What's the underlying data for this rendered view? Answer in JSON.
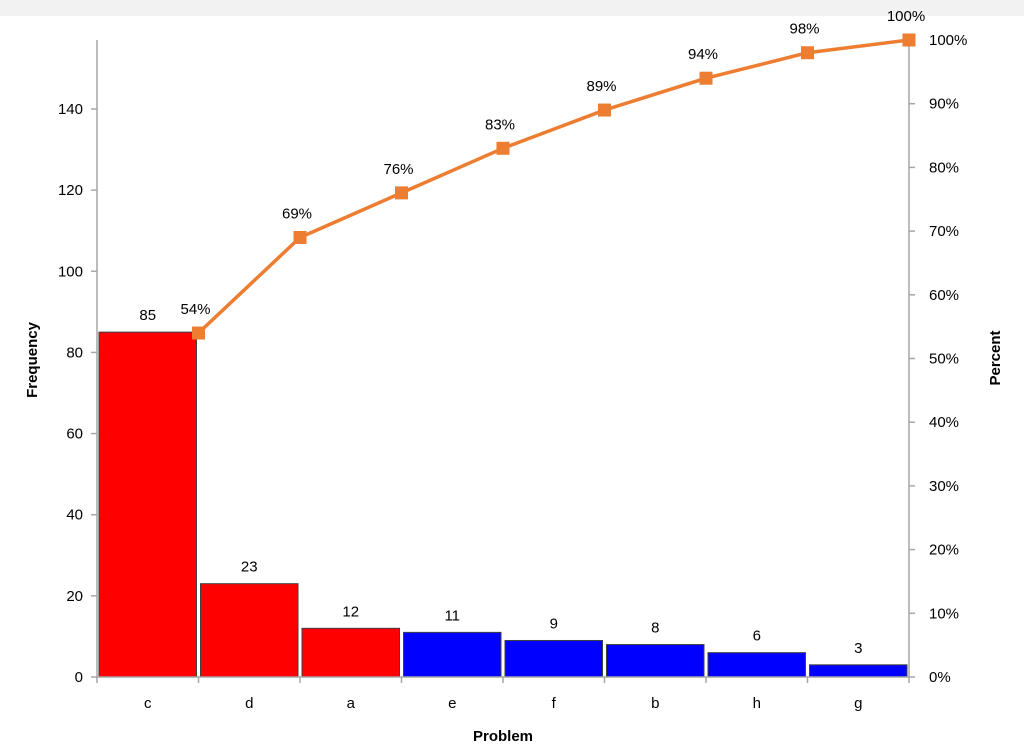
{
  "chart_data": {
    "type": "bar",
    "categories": [
      "c",
      "d",
      "a",
      "e",
      "f",
      "b",
      "h",
      "g"
    ],
    "series": [
      {
        "type": "bar",
        "values": [
          85,
          23,
          12,
          11,
          9,
          8,
          6,
          3
        ],
        "colors": [
          "#ff0000",
          "#ff0000",
          "#ff0000",
          "#0000ff",
          "#0000ff",
          "#0000ff",
          "#0000ff",
          "#0000ff"
        ]
      },
      {
        "type": "line",
        "axis": "right",
        "values": [
          54,
          69,
          76,
          83,
          89,
          94,
          98,
          100
        ],
        "labels": [
          "54%",
          "69%",
          "76%",
          "83%",
          "89%",
          "94%",
          "98%",
          "100%"
        ],
        "color": "#ed7d31",
        "marker": "square"
      }
    ],
    "xlabel": "Problem",
    "ylabel": "Frequency",
    "y2label": "Percent",
    "ylim": [
      0,
      157
    ],
    "y2lim": [
      0,
      100
    ],
    "yticks": [
      0,
      20,
      40,
      60,
      80,
      100,
      120,
      140
    ],
    "y2ticks": [
      "0%",
      "10%",
      "20%",
      "30%",
      "40%",
      "50%",
      "60%",
      "70%",
      "80%",
      "90%",
      "100%"
    ],
    "grid": false,
    "legend": "none",
    "bar_border_color": "#404040",
    "axis_color": "#a6a6a6"
  }
}
